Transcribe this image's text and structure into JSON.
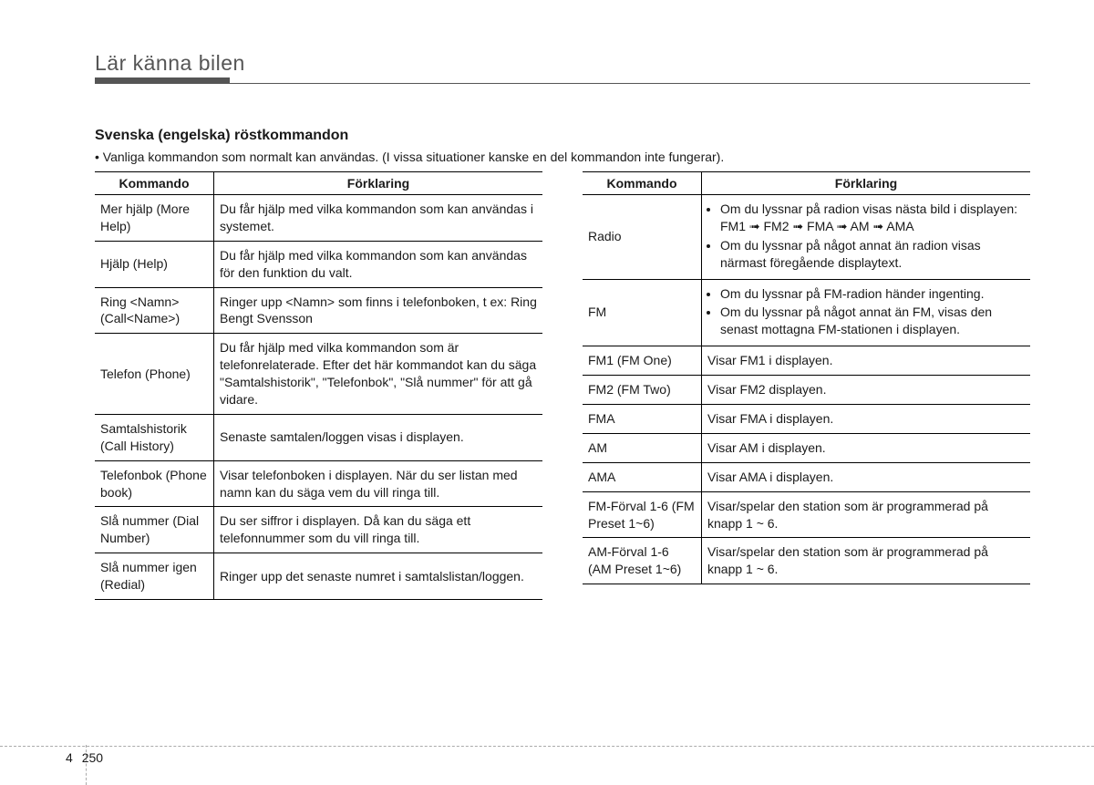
{
  "chapter_title": "Lär känna bilen",
  "section_title": "Svenska (engelska) röstkommandon",
  "intro": "• Vanliga kommandon som normalt kan användas. (I vissa situationer kanske en del kommandon inte fungerar).",
  "headers": {
    "command": "Kommando",
    "explanation": "Förklaring"
  },
  "left_rows": [
    {
      "cmd": "Mer hjälp (More Help)",
      "exp": "Du får hjälp med vilka kommandon som kan användas i systemet."
    },
    {
      "cmd": "Hjälp (Help)",
      "exp": "Du får hjälp med vilka kommandon som kan användas för den funktion du valt."
    },
    {
      "cmd": "Ring <Namn> (Call<Name>)",
      "exp": "Ringer upp <Namn> som finns i telefonboken, t ex: Ring Bengt Svensson"
    },
    {
      "cmd": "Telefon (Phone)",
      "exp": "Du får hjälp med vilka kommandon som är telefonrelaterade. Efter det här kommandot kan du säga \"Samtalshistorik\", \"Telefonbok\", \"Slå nummer\" för att gå vidare."
    },
    {
      "cmd": "Samtalshistorik (Call History)",
      "exp": "Senaste samtalen/loggen visas i displayen."
    },
    {
      "cmd": "Telefonbok (Phone book)",
      "exp": "Visar telefonboken i displayen. När du ser listan med namn kan du säga vem du vill ringa till."
    },
    {
      "cmd": "Slå nummer (Dial Number)",
      "exp": "Du ser siffror i displayen. Då kan du säga ett telefonnummer som du vill ringa till."
    },
    {
      "cmd": "Slå nummer igen (Redial)",
      "exp": "Ringer upp det senaste numret i samtalslistan/loggen."
    }
  ],
  "right_rows": [
    {
      "cmd": "Radio",
      "exp_bullets": [
        "Om du lyssnar på radion visas nästa bild i displayen: FM1 ➟ FM2 ➟ FMA ➟ AM ➟ AMA",
        "Om du lyssnar på något annat än radion visas närmast föregående displaytext."
      ]
    },
    {
      "cmd": "FM",
      "exp_bullets": [
        "Om du lyssnar på FM-radion händer ingenting.",
        "Om du lyssnar på något annat än FM, visas den senast mottagna FM-stationen i displayen."
      ]
    },
    {
      "cmd": "FM1 (FM One)",
      "exp": "Visar FM1 i displayen."
    },
    {
      "cmd": "FM2 (FM Two)",
      "exp": "Visar FM2 displayen."
    },
    {
      "cmd": "FMA",
      "exp": "Visar FMA i displayen."
    },
    {
      "cmd": "AM",
      "exp": "Visar AM i displayen."
    },
    {
      "cmd": "AMA",
      "exp": "Visar AMA i displayen."
    },
    {
      "cmd": "FM-Förval 1-6 (FM Preset 1~6)",
      "exp": "Visar/spelar den station som är programmerad på knapp 1 ~ 6."
    },
    {
      "cmd": "AM-Förval 1-6 (AM Preset 1~6)",
      "exp": "Visar/spelar den station som är programmerad på knapp 1 ~ 6."
    }
  ],
  "footer": {
    "chapter": "4",
    "page": "250"
  }
}
